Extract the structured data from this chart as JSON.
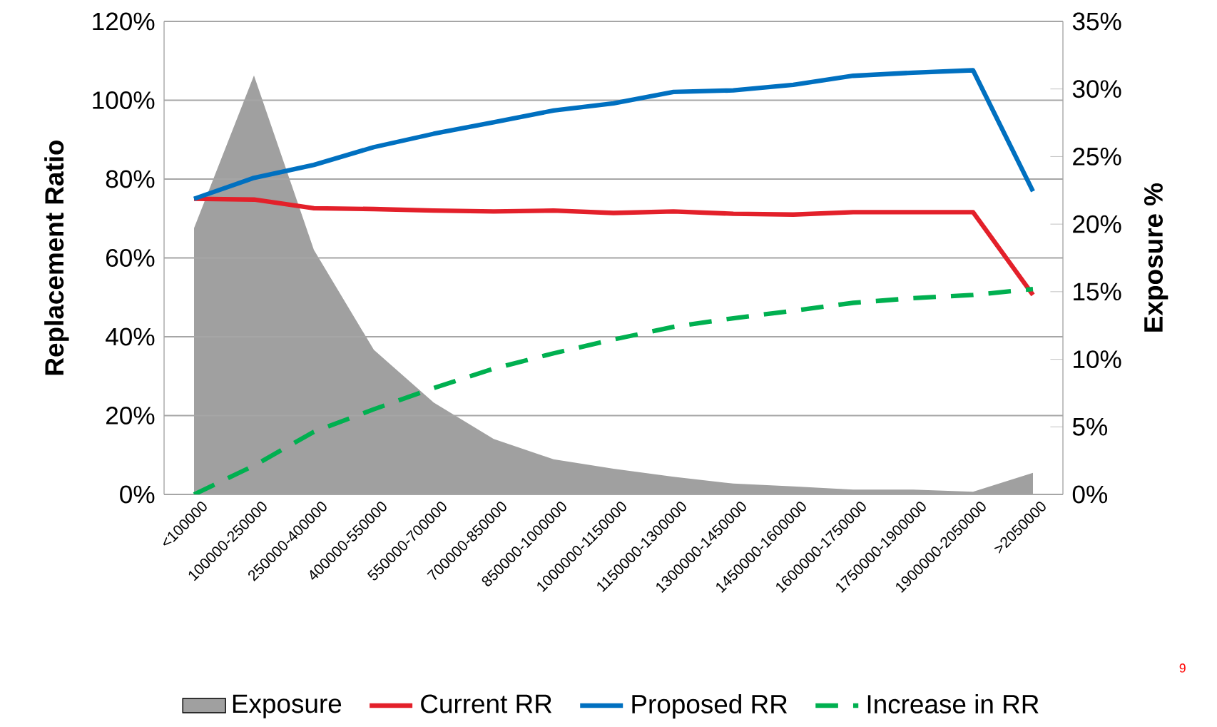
{
  "chart_data": {
    "type": "line",
    "categories": [
      "<100000",
      "100000-250000",
      "250000-400000",
      "400000-550000",
      "550000-700000",
      "700000-850000",
      "850000-1000000",
      "1000000-1150000",
      "1150000-1300000",
      "1300000-1450000",
      "1450000-1600000",
      "1600000-1750000",
      "1750000-1900000",
      "1900000-2050000",
      ">2050000"
    ],
    "ylabel": "Replacement Ratio",
    "y2label": "Exposure %",
    "ylim": [
      0,
      120
    ],
    "yticks": [
      {
        "value": 0,
        "label": "0%"
      },
      {
        "value": 20,
        "label": "20%"
      },
      {
        "value": 40,
        "label": "40%"
      },
      {
        "value": 60,
        "label": "60%"
      },
      {
        "value": 80,
        "label": "80%"
      },
      {
        "value": 100,
        "label": "100%"
      },
      {
        "value": 120,
        "label": "120%"
      }
    ],
    "y2lim": [
      0,
      35
    ],
    "y2ticks": [
      {
        "value": 0,
        "label": "0%"
      },
      {
        "value": 5,
        "label": "5%"
      },
      {
        "value": 10,
        "label": "10%"
      },
      {
        "value": 15,
        "label": "15%"
      },
      {
        "value": 20,
        "label": "20%"
      },
      {
        "value": 25,
        "label": "25%"
      },
      {
        "value": 30,
        "label": "30%"
      },
      {
        "value": 35,
        "label": "35%"
      }
    ],
    "grid": "y",
    "legend": "bottom",
    "marker": "none",
    "series": [
      {
        "name": "Exposure",
        "type": "area",
        "axis": "y2",
        "color": "#a0a0a0",
        "values": [
          19.7,
          31.0,
          18.1,
          10.7,
          6.8,
          4.1,
          2.6,
          1.9,
          1.3,
          0.8,
          0.6,
          0.35,
          0.35,
          0.2,
          1.6
        ]
      },
      {
        "name": "Current RR",
        "color": "#e3202a",
        "values": [
          75.0,
          74.8,
          72.6,
          72.4,
          72.0,
          71.8,
          72.0,
          71.4,
          71.8,
          71.2,
          71.0,
          71.6,
          71.6,
          71.6,
          50.6
        ]
      },
      {
        "name": "Proposed RR",
        "color": "#0070c0",
        "values": [
          75.0,
          80.3,
          83.6,
          88.1,
          91.5,
          94.4,
          97.4,
          99.2,
          102.1,
          102.5,
          103.9,
          106.2,
          107.0,
          107.6,
          76.9
        ]
      },
      {
        "name": "Increase in RR",
        "color": "#00b050",
        "line_style": "dashed",
        "values": [
          0,
          7.3,
          15.9,
          21.6,
          27.0,
          31.9,
          35.8,
          39.3,
          42.5,
          44.7,
          46.6,
          48.6,
          49.8,
          50.6,
          52.1
        ]
      }
    ],
    "annotations": [
      "9"
    ]
  }
}
